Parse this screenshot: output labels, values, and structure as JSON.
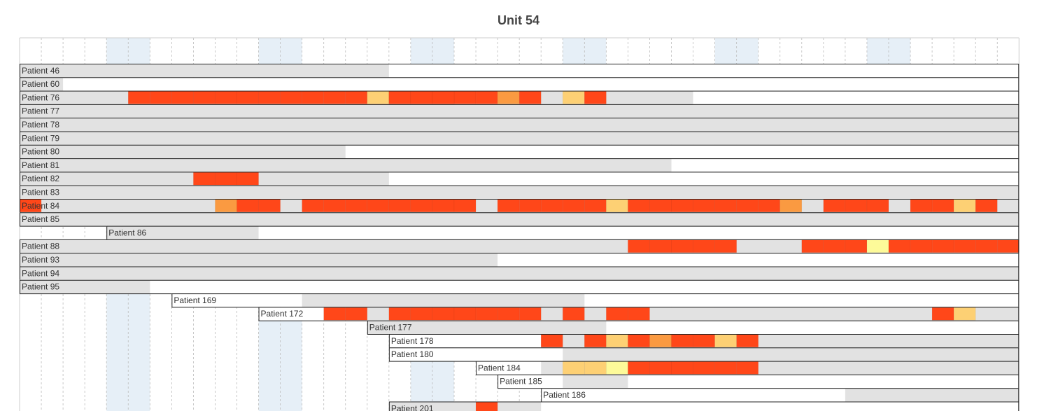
{
  "chart_data": {
    "type": "gantt-heatmap",
    "title": "Unit 54",
    "x_slots": 46,
    "weekend_slots": [
      4,
      5,
      11,
      12,
      18,
      19,
      25,
      26,
      32,
      33,
      39,
      40
    ],
    "colors": {
      "stay": "#e2e2e2",
      "level_1": "#ff4719",
      "level_2": "#fa9a41",
      "level_3": "#fdd074",
      "level_4": "#fdfa99",
      "weekend": "#e6eff7",
      "grid": "#bbbbbb",
      "border": "#222222"
    },
    "rows": [
      {
        "label": "Patient 46",
        "label_slot": 0,
        "start": 0,
        "end": 17,
        "cells": []
      },
      {
        "label": "Patient 60",
        "label_slot": 0,
        "start": 0,
        "end": 2,
        "cells": []
      },
      {
        "label": "Patient 76",
        "label_slot": 0,
        "start": 0,
        "end": 31,
        "cells": [
          [
            5,
            16,
            1
          ],
          [
            16,
            1,
            3
          ],
          [
            17,
            3,
            1
          ],
          [
            21,
            1,
            1
          ],
          [
            22,
            1,
            2
          ],
          [
            23,
            1,
            1
          ],
          [
            25,
            1,
            3
          ],
          [
            26,
            1,
            1
          ]
        ]
      },
      {
        "label": "Patient 77",
        "label_slot": 0,
        "start": 0,
        "end": 46,
        "cells": []
      },
      {
        "label": "Patient 78",
        "label_slot": 0,
        "start": 0,
        "end": 46,
        "cells": []
      },
      {
        "label": "Patient 79",
        "label_slot": 0,
        "start": 0,
        "end": 46,
        "cells": []
      },
      {
        "label": "Patient 80",
        "label_slot": 0,
        "start": 0,
        "end": 15,
        "cells": []
      },
      {
        "label": "Patient 81",
        "label_slot": 0,
        "start": 0,
        "end": 30,
        "cells": []
      },
      {
        "label": "Patient 82",
        "label_slot": 0,
        "start": 0,
        "end": 17,
        "cells": [
          [
            8,
            3,
            1
          ]
        ]
      },
      {
        "label": "Patient 83",
        "label_slot": 0,
        "start": 0,
        "end": 46,
        "cells": []
      },
      {
        "label": "Patient 84",
        "label_slot": 0,
        "start": 0,
        "end": 46,
        "cells": [
          [
            0,
            1,
            1
          ],
          [
            9,
            1,
            2
          ],
          [
            10,
            2,
            1
          ],
          [
            13,
            8,
            1
          ],
          [
            22,
            5,
            1
          ],
          [
            27,
            1,
            3
          ],
          [
            28,
            7,
            1
          ],
          [
            35,
            1,
            2
          ],
          [
            37,
            3,
            1
          ],
          [
            41,
            2,
            1
          ],
          [
            43,
            1,
            3
          ],
          [
            44,
            1,
            1
          ]
        ]
      },
      {
        "label": "Patient 85",
        "label_slot": 0,
        "start": 0,
        "end": 46,
        "cells": []
      },
      {
        "label": "Patient 86",
        "label_slot": 4,
        "start": 4,
        "end": 11,
        "cells": []
      },
      {
        "label": "Patient 88",
        "label_slot": 0,
        "start": 0,
        "end": 46,
        "cells": [
          [
            28,
            5,
            1
          ],
          [
            36,
            3,
            1
          ],
          [
            39,
            1,
            4
          ],
          [
            40,
            6,
            1
          ]
        ]
      },
      {
        "label": "Patient 93",
        "label_slot": 0,
        "start": 0,
        "end": 22,
        "cells": []
      },
      {
        "label": "Patient 94",
        "label_slot": 0,
        "start": 0,
        "end": 46,
        "cells": []
      },
      {
        "label": "Patient 95",
        "label_slot": 0,
        "start": 0,
        "end": 6,
        "cells": []
      },
      {
        "label": "Patient 169",
        "label_slot": 7,
        "start": 13,
        "end": 26,
        "cells": []
      },
      {
        "label": "Patient 172",
        "label_slot": 11,
        "start": 14,
        "end": 46,
        "cells": [
          [
            14,
            2,
            1
          ],
          [
            17,
            7,
            1
          ],
          [
            25,
            1,
            1
          ],
          [
            27,
            2,
            1
          ],
          [
            42,
            1,
            1
          ],
          [
            43,
            1,
            3
          ]
        ]
      },
      {
        "label": "Patient 177",
        "label_slot": 16,
        "start": 16,
        "end": 27,
        "cells": []
      },
      {
        "label": "Patient 178",
        "label_slot": 17,
        "start": 24,
        "end": 46,
        "cells": [
          [
            24,
            1,
            1
          ],
          [
            26,
            1,
            1
          ],
          [
            27,
            1,
            3
          ],
          [
            28,
            1,
            1
          ],
          [
            29,
            1,
            2
          ],
          [
            30,
            2,
            1
          ],
          [
            32,
            1,
            3
          ],
          [
            33,
            1,
            1
          ]
        ]
      },
      {
        "label": "Patient 180",
        "label_slot": 17,
        "start": 25,
        "end": 46,
        "cells": []
      },
      {
        "label": "Patient 184",
        "label_slot": 21,
        "start": 24,
        "end": 46,
        "cells": [
          [
            25,
            2,
            3
          ],
          [
            27,
            1,
            4
          ],
          [
            28,
            6,
            1
          ]
        ]
      },
      {
        "label": "Patient 185",
        "label_slot": 22,
        "start": 25,
        "end": 28,
        "cells": []
      },
      {
        "label": "Patient 186",
        "label_slot": 24,
        "start": 38,
        "end": 46,
        "cells": []
      },
      {
        "label": "Patient 201",
        "label_slot": 17,
        "start": 17,
        "end": 24,
        "cells": [
          [
            21,
            1,
            1
          ]
        ]
      }
    ]
  }
}
